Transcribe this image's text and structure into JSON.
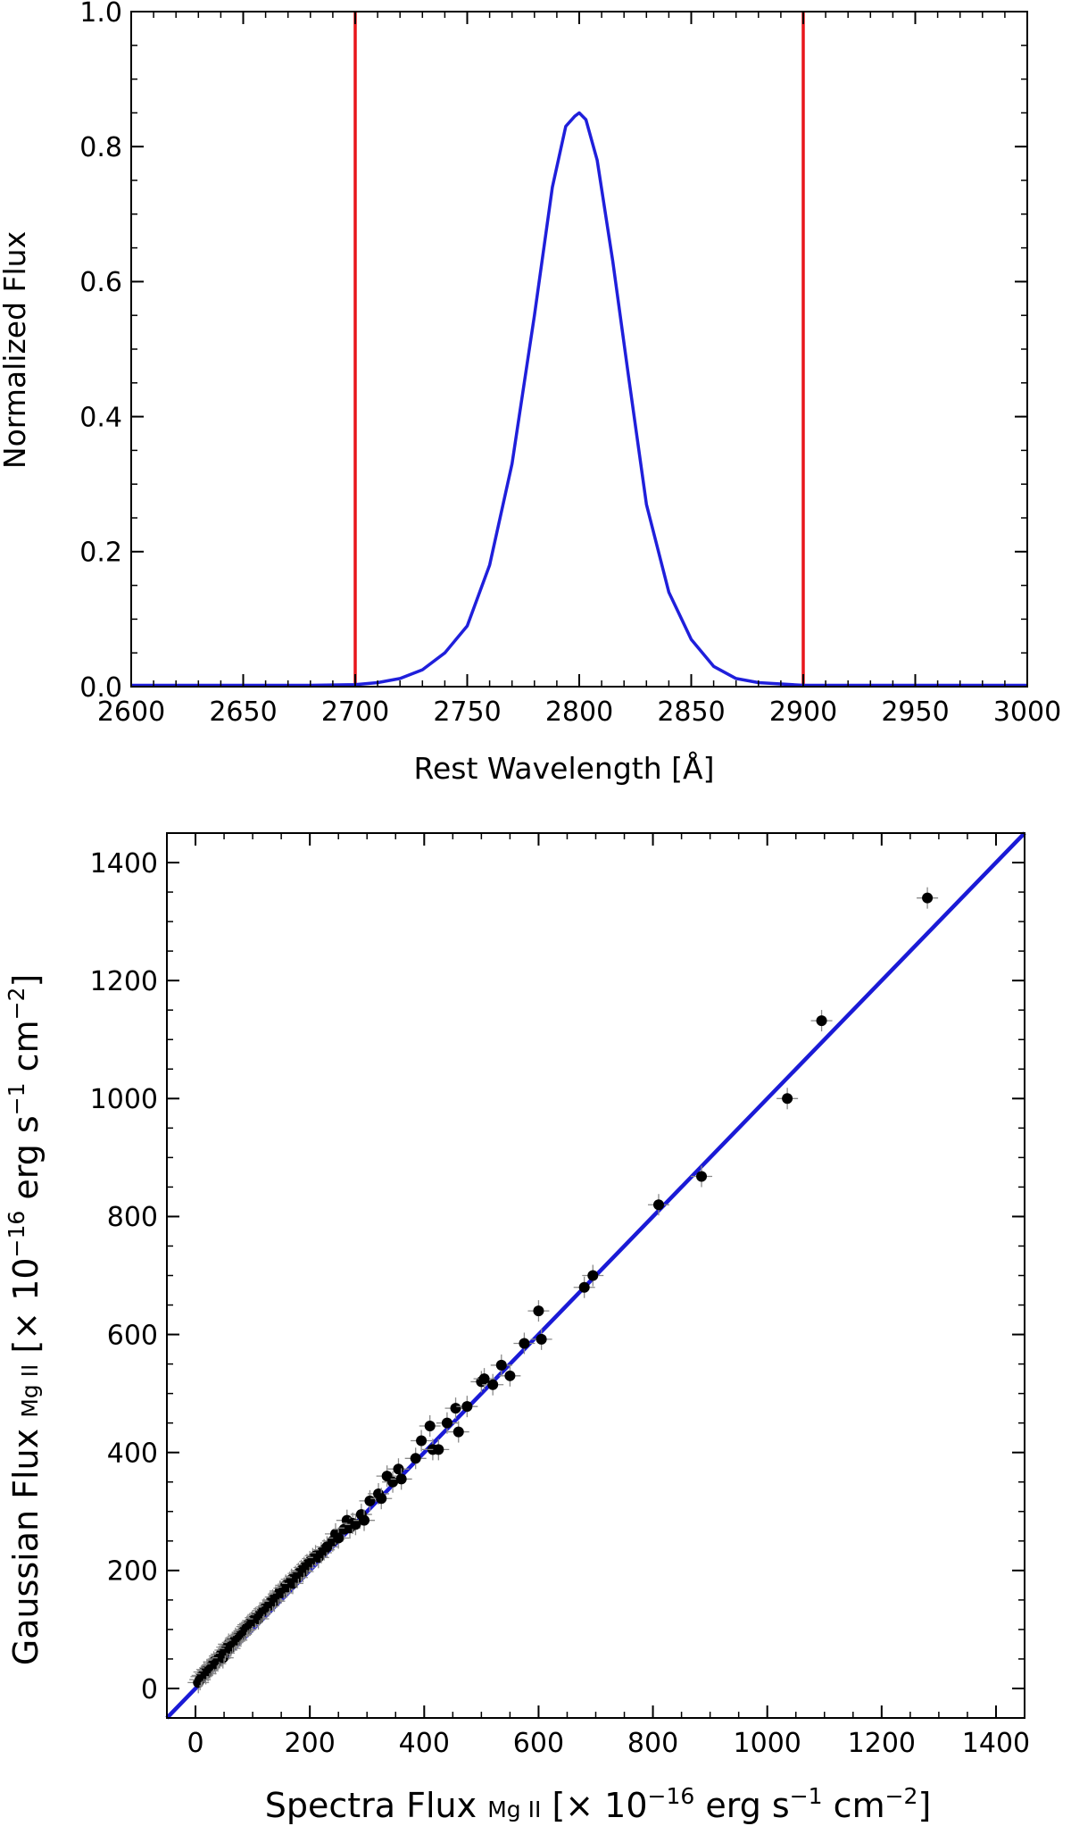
{
  "chart_data": [
    {
      "type": "line",
      "xlabel": "Rest Wavelength [Å]",
      "ylabel": "Normalized Flux",
      "xlim": [
        2600,
        3000
      ],
      "ylim": [
        0,
        1.0
      ],
      "x_ticks": [
        "2600",
        "2650",
        "2700",
        "2750",
        "2800",
        "2850",
        "2900",
        "2950",
        "3000"
      ],
      "y_ticks": [
        "0.0",
        "0.2",
        "0.4",
        "0.6",
        "0.8",
        "1.0"
      ],
      "x_tick_values": [
        2600,
        2650,
        2700,
        2750,
        2800,
        2850,
        2900,
        2950,
        3000
      ],
      "y_tick_values": [
        0,
        0.2,
        0.4,
        0.6,
        0.8,
        1.0
      ],
      "series": [
        {
          "color": "#1f1fdb",
          "x": [
            2600,
            2680,
            2700,
            2710,
            2720,
            2730,
            2740,
            2750,
            2760,
            2770,
            2780,
            2788,
            2794,
            2798,
            2800,
            2803,
            2808,
            2815,
            2822,
            2830,
            2840,
            2850,
            2860,
            2870,
            2880,
            2900,
            3000
          ],
          "y": [
            0.002,
            0.002,
            0.003,
            0.006,
            0.012,
            0.025,
            0.05,
            0.09,
            0.18,
            0.33,
            0.55,
            0.74,
            0.83,
            0.845,
            0.85,
            0.84,
            0.78,
            0.63,
            0.46,
            0.27,
            0.14,
            0.07,
            0.03,
            0.012,
            0.006,
            0.002,
            0.002
          ]
        }
      ],
      "vlines": [
        {
          "x": 2700,
          "color": "#e8161b"
        },
        {
          "x": 2900,
          "color": "#e8161b"
        }
      ]
    },
    {
      "type": "scatter",
      "xlabel": "Spectra Flux",
      "xlabel_sub": "Mg II",
      "xlabel_unit_pre": "[× 10",
      "xlabel_exp1": "−16",
      "xlabel_unit_mid": " erg s",
      "xlabel_exp2": "−1",
      "xlabel_unit_mid2": " cm",
      "xlabel_exp3": "−2",
      "xlabel_unit_post": "]",
      "ylabel": "Gaussian Flux",
      "ylabel_sub": "Mg II",
      "ylabel_unit_pre": "[× 10",
      "ylabel_exp1": "−16",
      "ylabel_unit_mid": " erg s",
      "ylabel_exp2": "−1",
      "ylabel_unit_mid2": " cm",
      "ylabel_exp3": "−2",
      "ylabel_unit_post": "]",
      "xlim": [
        -50,
        1450
      ],
      "ylim": [
        -50,
        1450
      ],
      "x_ticks": [
        "0",
        "200",
        "400",
        "600",
        "800",
        "1000",
        "1200",
        "1400"
      ],
      "y_ticks": [
        "0",
        "200",
        "400",
        "600",
        "800",
        "1000",
        "1200",
        "1400"
      ],
      "x_tick_values": [
        0,
        200,
        400,
        600,
        800,
        1000,
        1200,
        1400
      ],
      "y_tick_values": [
        0,
        200,
        400,
        600,
        800,
        1000,
        1200,
        1400
      ],
      "fit_line": {
        "slope": 1.0,
        "intercept": 0,
        "color": "#1a1ad6"
      },
      "points": [
        [
          5,
          10
        ],
        [
          8,
          15
        ],
        [
          10,
          20
        ],
        [
          12,
          22
        ],
        [
          15,
          28
        ],
        [
          18,
          25
        ],
        [
          20,
          32
        ],
        [
          22,
          30
        ],
        [
          25,
          35
        ],
        [
          28,
          38
        ],
        [
          30,
          40
        ],
        [
          32,
          45
        ],
        [
          35,
          42
        ],
        [
          38,
          48
        ],
        [
          40,
          50
        ],
        [
          42,
          55
        ],
        [
          45,
          58
        ],
        [
          48,
          52
        ],
        [
          50,
          60
        ],
        [
          52,
          65
        ],
        [
          55,
          70
        ],
        [
          58,
          75
        ],
        [
          60,
          68
        ],
        [
          62,
          72
        ],
        [
          65,
          78
        ],
        [
          68,
          80
        ],
        [
          70,
          85
        ],
        [
          72,
          82
        ],
        [
          75,
          88
        ],
        [
          78,
          90
        ],
        [
          80,
          92
        ],
        [
          82,
          95
        ],
        [
          85,
          98
        ],
        [
          88,
          100
        ],
        [
          90,
          105
        ],
        [
          92,
          108
        ],
        [
          95,
          110
        ],
        [
          98,
          112
        ],
        [
          100,
          115
        ],
        [
          105,
          120
        ],
        [
          110,
          118
        ],
        [
          112,
          125
        ],
        [
          115,
          128
        ],
        [
          118,
          132
        ],
        [
          120,
          135
        ],
        [
          125,
          138
        ],
        [
          128,
          140
        ],
        [
          130,
          145
        ],
        [
          135,
          150
        ],
        [
          138,
          148
        ],
        [
          140,
          155
        ],
        [
          145,
          160
        ],
        [
          148,
          165
        ],
        [
          150,
          162
        ],
        [
          155,
          170
        ],
        [
          158,
          175
        ],
        [
          160,
          172
        ],
        [
          165,
          180
        ],
        [
          168,
          185
        ],
        [
          170,
          178
        ],
        [
          175,
          190
        ],
        [
          178,
          188
        ],
        [
          180,
          195
        ],
        [
          185,
          200
        ],
        [
          188,
          198
        ],
        [
          190,
          205
        ],
        [
          195,
          210
        ],
        [
          200,
          215
        ],
        [
          205,
          220
        ],
        [
          210,
          225
        ],
        [
          215,
          222
        ],
        [
          220,
          230
        ],
        [
          225,
          235
        ],
        [
          230,
          240
        ],
        [
          240,
          250
        ],
        [
          245,
          262
        ],
        [
          250,
          255
        ],
        [
          260,
          270
        ],
        [
          265,
          285
        ],
        [
          270,
          272
        ],
        [
          275,
          280
        ],
        [
          280,
          278
        ],
        [
          290,
          295
        ],
        [
          295,
          285
        ],
        [
          305,
          318
        ],
        [
          320,
          330
        ],
        [
          325,
          322
        ],
        [
          335,
          360
        ],
        [
          345,
          350
        ],
        [
          355,
          372
        ],
        [
          360,
          355
        ],
        [
          385,
          390
        ],
        [
          395,
          420
        ],
        [
          410,
          445
        ],
        [
          415,
          405
        ],
        [
          425,
          405
        ],
        [
          440,
          450
        ],
        [
          455,
          475
        ],
        [
          460,
          435
        ],
        [
          475,
          478
        ],
        [
          500,
          520
        ],
        [
          505,
          525
        ],
        [
          520,
          515
        ],
        [
          535,
          548
        ],
        [
          550,
          530
        ],
        [
          575,
          585
        ],
        [
          600,
          640
        ],
        [
          605,
          592
        ],
        [
          680,
          680
        ],
        [
          695,
          700
        ],
        [
          810,
          820
        ],
        [
          885,
          868
        ],
        [
          1035,
          1000
        ],
        [
          1095,
          1132
        ],
        [
          1280,
          1340
        ]
      ]
    }
  ]
}
